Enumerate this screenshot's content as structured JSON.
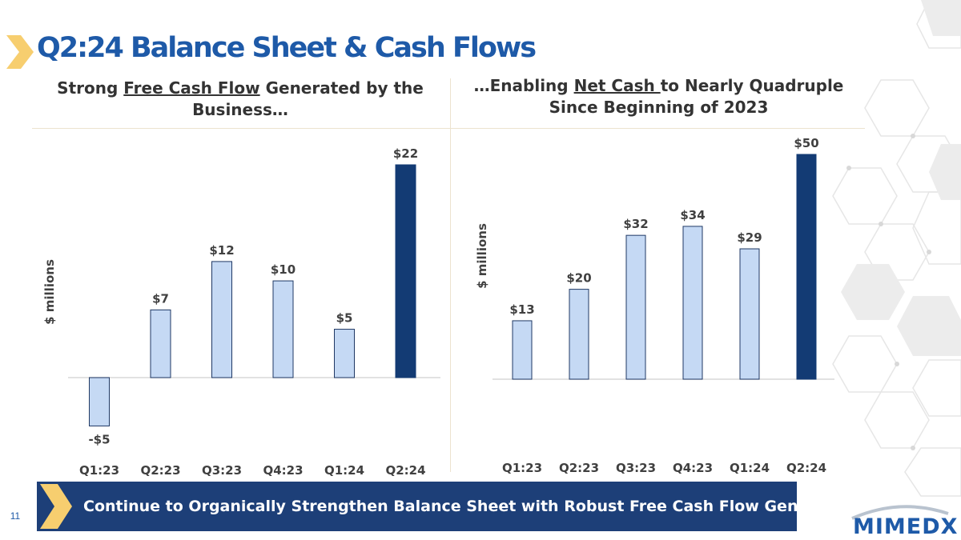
{
  "slide": {
    "title": "Q2:24 Balance Sheet & Cash Flows",
    "page_number": "11",
    "logo_text": "MIMEDX",
    "banner": "Continue to Organically Strengthen Balance Sheet with Robust Free Cash Flow Generation",
    "left_heading": {
      "pre": "Strong ",
      "underlined": "Free Cash Flow",
      "post": " Generated by the Business…"
    },
    "right_heading": {
      "pre": "…Enabling ",
      "underlined": "Net Cash ",
      "post": "to Nearly Quadruple Since Beginning of 2023"
    }
  },
  "colors": {
    "title": "#1e5aa8",
    "light_bar": "#c5d9f4",
    "dark_bar": "#133b74",
    "banner": "#1d3f78",
    "chevron": "#f7ce6f"
  },
  "chart_data": [
    {
      "type": "bar",
      "title": "Strong Free Cash Flow Generated by the Business…",
      "ylabel": "$ millions",
      "xlabel": "",
      "categories": [
        "Q1:23",
        "Q2:23",
        "Q3:23",
        "Q4:23",
        "Q1:24",
        "Q2:24"
      ],
      "values": [
        -5,
        7,
        12,
        10,
        5,
        22
      ],
      "labels": [
        "-$5",
        "$7",
        "$12",
        "$10",
        "$5",
        "$22"
      ],
      "highlight": [
        false,
        false,
        false,
        false,
        false,
        true
      ],
      "ylim": [
        -5,
        22
      ],
      "grid": false
    },
    {
      "type": "bar",
      "title": "…Enabling Net Cash to Nearly Quadruple Since Beginning of 2023",
      "ylabel": "$ millions",
      "xlabel": "",
      "categories": [
        "Q1:23",
        "Q2:23",
        "Q3:23",
        "Q4:23",
        "Q1:24",
        "Q2:24"
      ],
      "values": [
        13,
        20,
        32,
        34,
        29,
        50
      ],
      "labels": [
        "$13",
        "$20",
        "$32",
        "$34",
        "$29",
        "$50"
      ],
      "highlight": [
        false,
        false,
        false,
        false,
        false,
        true
      ],
      "ylim": [
        0,
        50
      ],
      "grid": false
    }
  ]
}
